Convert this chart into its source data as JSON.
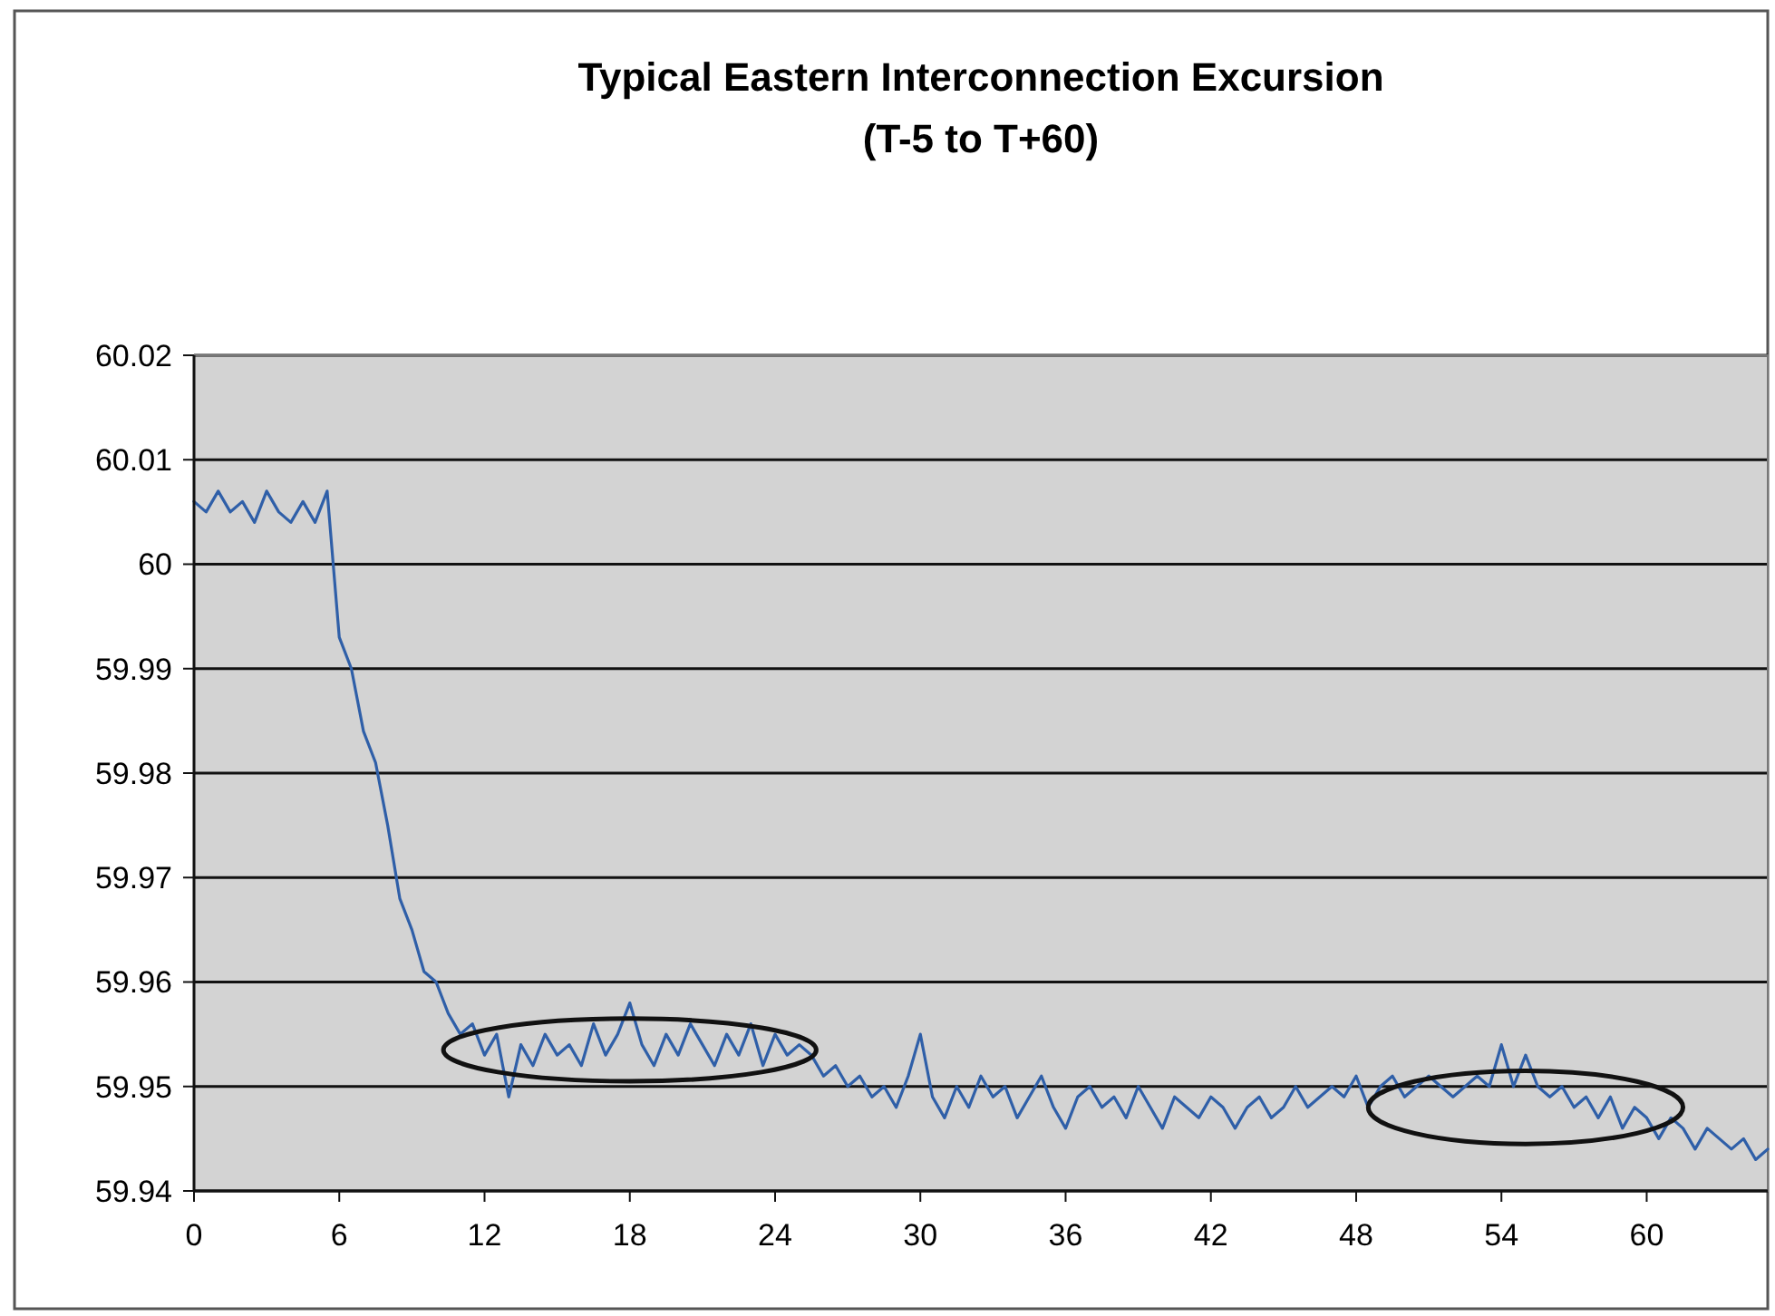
{
  "chart_data": {
    "type": "line",
    "title": "Typical Eastern Interconnection Excursion",
    "subtitle": "(T-5 to T+60)",
    "x": [
      0,
      0.5,
      1,
      1.5,
      2,
      2.5,
      3,
      3.5,
      4,
      4.5,
      5,
      5.5,
      6,
      6.5,
      7,
      7.5,
      8,
      8.5,
      9,
      9.5,
      10,
      10.5,
      11,
      11.5,
      12,
      12.5,
      13,
      13.5,
      14,
      14.5,
      15,
      15.5,
      16,
      16.5,
      17,
      17.5,
      18,
      18.5,
      19,
      19.5,
      20,
      20.5,
      21,
      21.5,
      22,
      22.5,
      23,
      23.5,
      24,
      24.5,
      25,
      25.5,
      26,
      26.5,
      27,
      27.5,
      28,
      28.5,
      29,
      29.5,
      30,
      30.5,
      31,
      31.5,
      32,
      32.5,
      33,
      33.5,
      34,
      34.5,
      35,
      35.5,
      36,
      36.5,
      37,
      37.5,
      38,
      38.5,
      39,
      39.5,
      40,
      40.5,
      41,
      41.5,
      42,
      42.5,
      43,
      43.5,
      44,
      44.5,
      45,
      45.5,
      46,
      46.5,
      47,
      47.5,
      48,
      48.5,
      49,
      49.5,
      50,
      50.5,
      51,
      51.5,
      52,
      52.5,
      53,
      53.5,
      54,
      54.5,
      55,
      55.5,
      56,
      56.5,
      57,
      57.5,
      58,
      58.5,
      59,
      59.5,
      60,
      60.5,
      61,
      61.5,
      62,
      62.5,
      63,
      63.5,
      64,
      64.5,
      65
    ],
    "series": [
      {
        "color": "#2f5fa8",
        "values": [
          60.006,
          60.005,
          60.007,
          60.005,
          60.006,
          60.004,
          60.007,
          60.005,
          60.004,
          60.006,
          60.004,
          60.007,
          59.993,
          59.99,
          59.984,
          59.981,
          59.975,
          59.968,
          59.965,
          59.961,
          59.96,
          59.957,
          59.955,
          59.956,
          59.953,
          59.955,
          59.949,
          59.954,
          59.952,
          59.955,
          59.953,
          59.954,
          59.952,
          59.956,
          59.953,
          59.955,
          59.958,
          59.954,
          59.952,
          59.955,
          59.953,
          59.956,
          59.954,
          59.952,
          59.955,
          59.953,
          59.956,
          59.952,
          59.955,
          59.953,
          59.954,
          59.953,
          59.951,
          59.952,
          59.95,
          59.951,
          59.949,
          59.95,
          59.948,
          59.951,
          59.955,
          59.949,
          59.947,
          59.95,
          59.948,
          59.951,
          59.949,
          59.95,
          59.947,
          59.949,
          59.951,
          59.948,
          59.946,
          59.949,
          59.95,
          59.948,
          59.949,
          59.947,
          59.95,
          59.948,
          59.946,
          59.949,
          59.948,
          59.947,
          59.949,
          59.948,
          59.946,
          59.948,
          59.949,
          59.947,
          59.948,
          59.95,
          59.948,
          59.949,
          59.95,
          59.949,
          59.951,
          59.948,
          59.95,
          59.951,
          59.949,
          59.95,
          59.951,
          59.95,
          59.949,
          59.95,
          59.951,
          59.95,
          59.954,
          59.95,
          59.953,
          59.95,
          59.949,
          59.95,
          59.948,
          59.949,
          59.947,
          59.949,
          59.946,
          59.948,
          59.947,
          59.945,
          59.947,
          59.946,
          59.944,
          59.946,
          59.945,
          59.944,
          59.945,
          59.943,
          59.944
        ]
      }
    ],
    "xlim": [
      0,
      65
    ],
    "xticks": [
      0,
      6,
      12,
      18,
      24,
      30,
      36,
      42,
      48,
      54,
      60
    ],
    "ylim": [
      59.94,
      60.02
    ],
    "yticks": [
      59.94,
      59.95,
      59.96,
      59.97,
      59.98,
      59.99,
      {
        "value": 60,
        "label": "60"
      },
      60.01,
      60.02
    ],
    "grid": "y",
    "marker": "none",
    "line_style": "solid"
  }
}
